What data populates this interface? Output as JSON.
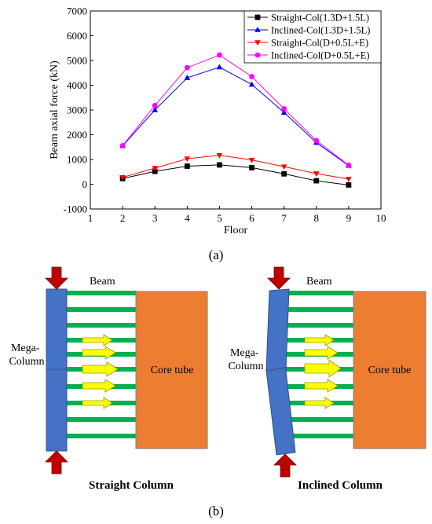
{
  "chart_data": {
    "type": "line",
    "xlabel": "Floor",
    "ylabel": "Beam axial force (kN)",
    "xlim": [
      1,
      10
    ],
    "ylim": [
      -1000,
      7000
    ],
    "xticks": [
      1,
      2,
      3,
      4,
      5,
      6,
      7,
      8,
      9,
      10
    ],
    "yticks": [
      -1000,
      0,
      1000,
      2000,
      3000,
      4000,
      5000,
      6000,
      7000
    ],
    "grid": false,
    "legend_position": "top-right",
    "x": [
      2,
      3,
      4,
      5,
      6,
      7,
      8,
      9
    ],
    "series": [
      {
        "name": "Straight-Col(1.3D+1.5L)",
        "color": "#000000",
        "marker": "square",
        "values": [
          230,
          520,
          730,
          780,
          670,
          420,
          140,
          -30
        ]
      },
      {
        "name": "Inclined-Col(1.3D+1.5L)",
        "color": "#0000ff",
        "marker": "triangle-up",
        "values": [
          1550,
          3000,
          4300,
          4730,
          4030,
          2900,
          1680,
          750
        ]
      },
      {
        "name": "Straight-Col(D+0.5L+E)",
        "color": "#ff0000",
        "marker": "triangle-down",
        "values": [
          280,
          650,
          1030,
          1170,
          980,
          710,
          430,
          210
        ]
      },
      {
        "name": "Inclined-Col(D+0.5L+E)",
        "color": "#ff00ff",
        "marker": "circle",
        "values": [
          1560,
          3180,
          4710,
          5220,
          4350,
          3050,
          1760,
          770
        ]
      }
    ]
  },
  "captions": {
    "a": "(a)",
    "b": "(b)"
  },
  "diagrams": {
    "straight": {
      "title": "Straight Column",
      "beam_label": "Beam",
      "column_label": [
        "Mega-",
        "Column"
      ],
      "core_label": "Core tube"
    },
    "inclined": {
      "title": "Inclined Column",
      "beam_label": "Beam",
      "column_label": [
        "Mega-",
        "Column"
      ],
      "core_label": "Core tube"
    }
  },
  "colors": {
    "column": "#4472c4",
    "core": "#ed7d31",
    "beam": "#00b050",
    "arrow": "#ffff00",
    "load": "#c00000"
  }
}
